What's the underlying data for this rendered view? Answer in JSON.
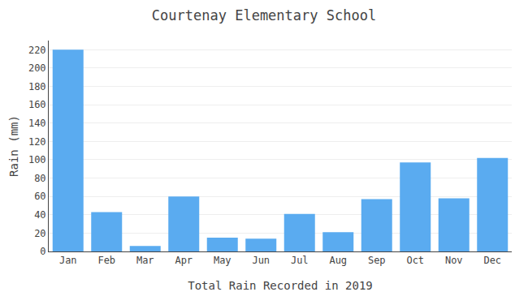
{
  "chart_data": {
    "type": "bar",
    "title": "Courtenay Elementary School",
    "xlabel": "Total Rain Recorded in 2019",
    "ylabel": "Rain (mm)",
    "categories": [
      "Jan",
      "Feb",
      "Mar",
      "Apr",
      "May",
      "Jun",
      "Jul",
      "Aug",
      "Sep",
      "Oct",
      "Nov",
      "Dec"
    ],
    "values": [
      220,
      43,
      6,
      60,
      15,
      14,
      41,
      21,
      57,
      97,
      58,
      102
    ],
    "color": "#5AABF0",
    "ylim": [
      0,
      230
    ],
    "yticks": [
      0,
      20,
      40,
      60,
      80,
      100,
      120,
      140,
      160,
      180,
      200,
      220
    ],
    "grid": true
  }
}
